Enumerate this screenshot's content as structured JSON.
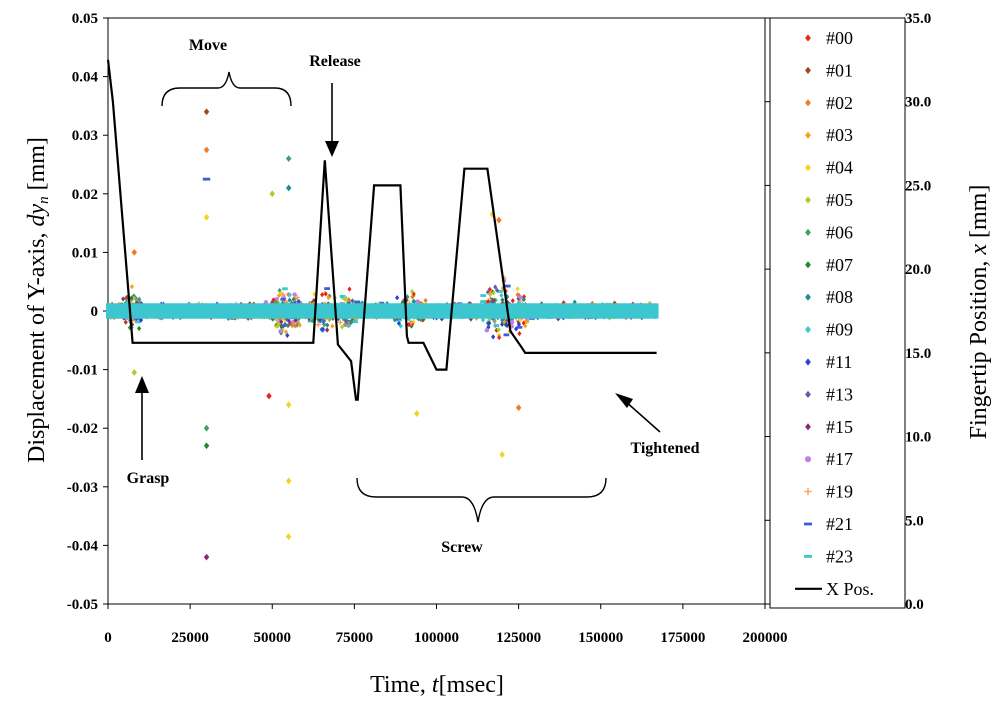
{
  "chart_data": {
    "type": "scatter",
    "xlabel": "Time,",
    "xlabel_var": "t",
    "xlabel_unit": "[msec]",
    "ylabel": "Displacement of Y-axis,",
    "ylabel_var": "dy",
    "ylabel_sub": "n",
    "ylabel_unit": "[mm]",
    "y2label": "Fingertip Position,",
    "y2label_var": "x",
    "y2label_unit": "[mm]",
    "xlim": [
      0,
      200000
    ],
    "ylim": [
      -0.05,
      0.05
    ],
    "y2lim": [
      0,
      35
    ],
    "x_ticks": [
      "0",
      "25000",
      "50000",
      "75000",
      "100000",
      "125000",
      "150000",
      "175000",
      "200000"
    ],
    "y_ticks": [
      "0.05",
      "0.04",
      "0.03",
      "0.02",
      "0.01",
      "0",
      "-0.01",
      "-0.02",
      "-0.03",
      "-0.04",
      "-0.05"
    ],
    "y2_ticks": [
      "35.0",
      "30.0",
      "25.0",
      "20.0",
      "15.0",
      "10.0",
      "5.0",
      "0.0"
    ],
    "grid": false,
    "legend": "right",
    "series": [
      {
        "name": "#00",
        "color": "#e8221c",
        "marker": "diamond"
      },
      {
        "name": "#01",
        "color": "#a0461e",
        "marker": "diamond"
      },
      {
        "name": "#02",
        "color": "#ef7a24",
        "marker": "diamond"
      },
      {
        "name": "#03",
        "color": "#f7a21a",
        "marker": "diamond"
      },
      {
        "name": "#04",
        "color": "#f6d31a",
        "marker": "diamond"
      },
      {
        "name": "#05",
        "color": "#a8cf2a",
        "marker": "diamond"
      },
      {
        "name": "#06",
        "color": "#3aa364",
        "marker": "diamond"
      },
      {
        "name": "#07",
        "color": "#1f8a2d",
        "marker": "diamond"
      },
      {
        "name": "#08",
        "color": "#1f8f8a",
        "marker": "diamond"
      },
      {
        "name": "#09",
        "color": "#3cc6cf",
        "marker": "diamond"
      },
      {
        "name": "#11",
        "color": "#2a3fd6",
        "marker": "diamond"
      },
      {
        "name": "#13",
        "color": "#5f5ea8",
        "marker": "diamond"
      },
      {
        "name": "#15",
        "color": "#8a2a6e",
        "marker": "diamond"
      },
      {
        "name": "#17",
        "color": "#c07ee6",
        "marker": "circle"
      },
      {
        "name": "#19",
        "color": "#f5a35f",
        "marker": "plus"
      },
      {
        "name": "#21",
        "color": "#3560d6",
        "marker": "dash"
      },
      {
        "name": "#23",
        "color": "#3cc6cf",
        "marker": "dash"
      },
      {
        "name": "X Pos.",
        "color": "#000000",
        "marker": "line"
      }
    ],
    "outliers": [
      {
        "series": "#01",
        "x": 30000,
        "y": 0.034
      },
      {
        "series": "#02",
        "x": 30000,
        "y": 0.0275
      },
      {
        "series": "#21",
        "x": 30000,
        "y": 0.0225
      },
      {
        "series": "#04",
        "x": 30000,
        "y": 0.016
      },
      {
        "series": "#06",
        "x": 30000,
        "y": -0.02
      },
      {
        "series": "#07",
        "x": 30000,
        "y": -0.023
      },
      {
        "series": "#15",
        "x": 30000,
        "y": -0.042
      },
      {
        "series": "#05",
        "x": 8000,
        "y": -0.0105
      },
      {
        "series": "#02",
        "x": 8000,
        "y": 0.01
      },
      {
        "series": "#06",
        "x": 55000,
        "y": 0.026
      },
      {
        "series": "#08",
        "x": 55000,
        "y": 0.021
      },
      {
        "series": "#05",
        "x": 50000,
        "y": 0.02
      },
      {
        "series": "#04",
        "x": 55000,
        "y": -0.029
      },
      {
        "series": "#04",
        "x": 55000,
        "y": -0.0385
      },
      {
        "series": "#04",
        "x": 55000,
        "y": -0.016
      },
      {
        "series": "#00",
        "x": 49000,
        "y": -0.0145
      },
      {
        "series": "#04",
        "x": 94000,
        "y": -0.0175
      },
      {
        "series": "#04",
        "x": 120000,
        "y": -0.0245
      },
      {
        "series": "#02",
        "x": 125000,
        "y": -0.0165
      },
      {
        "series": "#02",
        "x": 119000,
        "y": 0.0155
      },
      {
        "series": "#04",
        "x": 117000,
        "y": 0.0165
      }
    ],
    "x_position": {
      "series": "X Pos.",
      "x": [
        0,
        1500,
        4000,
        7500,
        62500,
        66000,
        70000,
        74000,
        75500,
        76000,
        81000,
        83000,
        89000,
        91000,
        91500,
        94000,
        96000,
        100000,
        101500,
        103000,
        108500,
        110500,
        115500,
        122500,
        126000,
        127000,
        167000
      ],
      "y": [
        32.5,
        30,
        24,
        15.6,
        15.6,
        26.5,
        15.5,
        14.5,
        12.2,
        12.2,
        25,
        25,
        25,
        16,
        15.6,
        15.6,
        15.6,
        14,
        14,
        14,
        26,
        26,
        26,
        16.3,
        15.3,
        15.0,
        15.0
      ]
    },
    "annotations": [
      {
        "text": "Move",
        "x": 29000,
        "y": 0.045
      },
      {
        "text": "Release",
        "x": 53000,
        "y": 0.041
      },
      {
        "text": "Grasp",
        "x": 6000,
        "y": -0.028
      },
      {
        "text": "Tightened",
        "x": 143000,
        "y": -0.024
      },
      {
        "text": "Screw",
        "x": 95000,
        "y": -0.04
      }
    ]
  }
}
